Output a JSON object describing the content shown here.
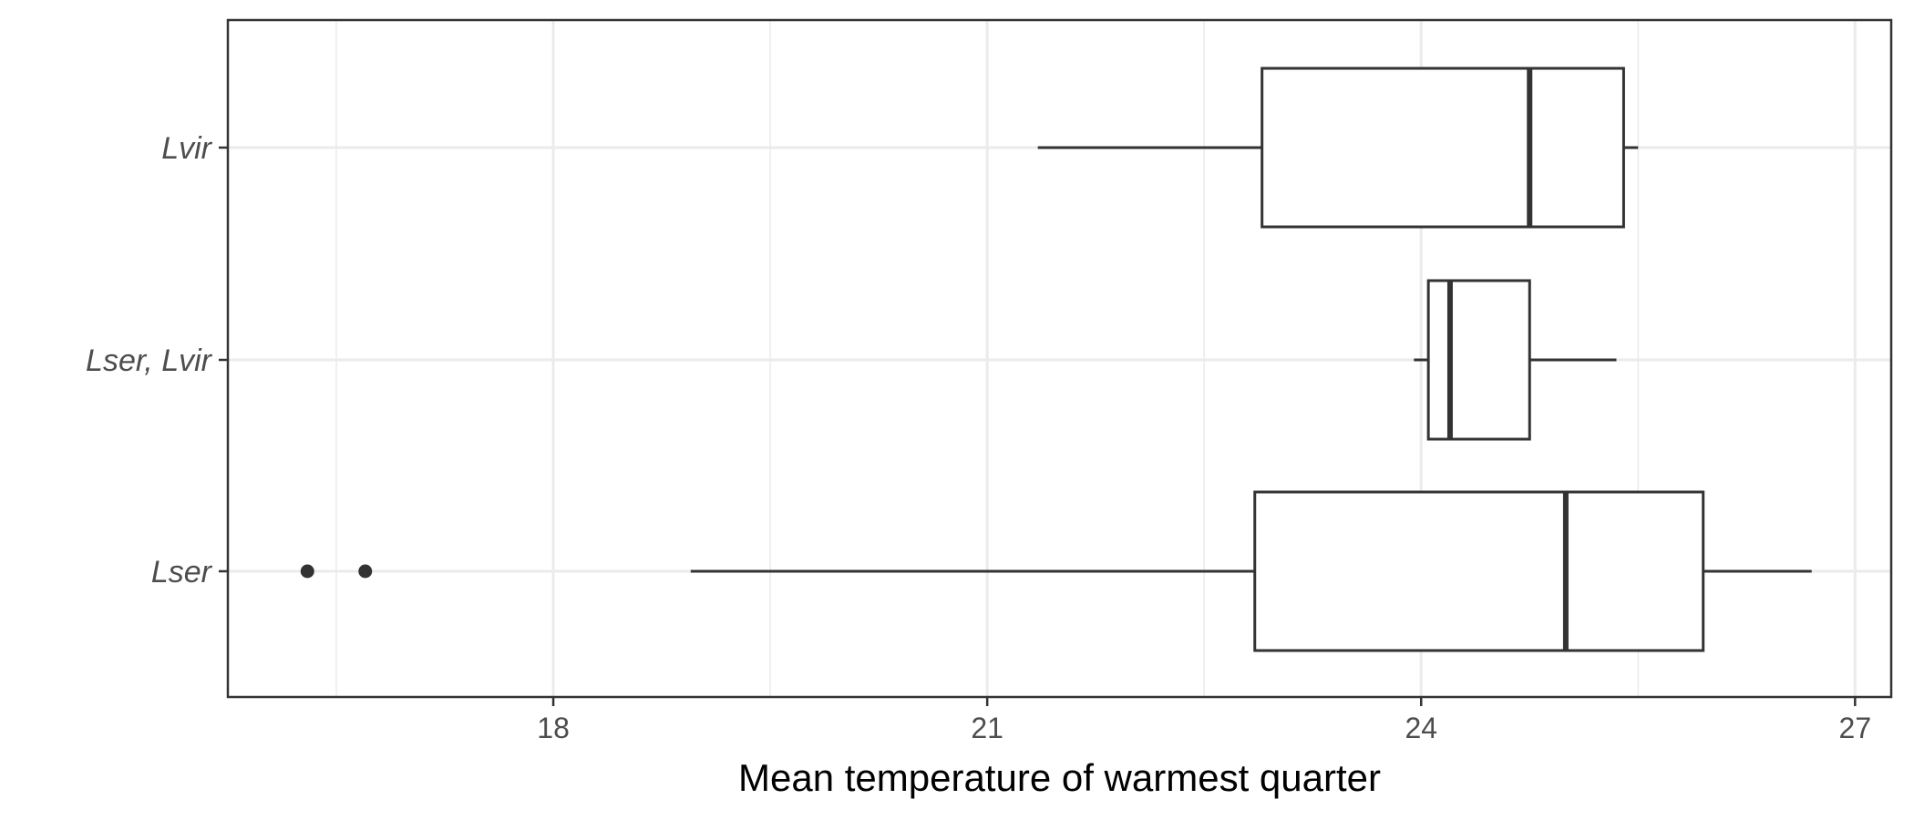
{
  "chart_data": {
    "type": "boxplot",
    "orientation": "horizontal",
    "title": "",
    "xlabel": "Mean temperature of warmest quarter",
    "ylabel": "",
    "xlim": [
      15.75,
      27.25
    ],
    "xticks": [
      18,
      21,
      24,
      27
    ],
    "xtick_labels": [
      "18",
      "21",
      "24",
      "27"
    ],
    "categories": [
      "Lvir",
      "Lser, Lvir",
      "Lser"
    ],
    "boxes": [
      {
        "category": "Lvir",
        "whisker_low": 21.35,
        "q1": 22.9,
        "median": 24.75,
        "q3": 25.4,
        "whisker_high": 25.5,
        "outliers": []
      },
      {
        "category": "Lser, Lvir",
        "whisker_low": 23.95,
        "q1": 24.05,
        "median": 24.2,
        "q3": 24.75,
        "whisker_high": 25.35,
        "outliers": []
      },
      {
        "category": "Lser",
        "whisker_low": 18.95,
        "q1": 22.85,
        "median": 25.0,
        "q3": 25.95,
        "whisker_high": 26.7,
        "outliers": [
          16.3,
          16.7
        ]
      }
    ],
    "grid": true,
    "legend": "none",
    "colors": {
      "box_stroke": "#333333",
      "box_fill": "#ffffff",
      "grid": "#ebebeb",
      "panel_border": "#333333"
    }
  }
}
